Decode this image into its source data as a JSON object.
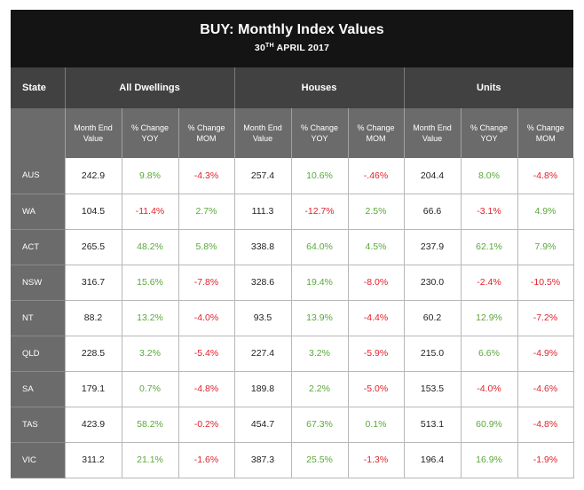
{
  "title": "BUY: Monthly Index Values",
  "subtitle_main": "30",
  "subtitle_sup": "TH",
  "subtitle_rest": " APRIL 2017",
  "state_header": "State",
  "groups": [
    "All Dwellings",
    "Houses",
    "Units"
  ],
  "subheaders": {
    "month_end_1": "Month End",
    "month_end_2": "Value",
    "yoy_1": "% Change",
    "yoy_2": "YOY",
    "mom_1": "% Change",
    "mom_2": "MOM"
  },
  "colors": {
    "positive": "#5aa83a",
    "negative": "#e0232b",
    "header_dark": "#141414",
    "header_mid": "#414141",
    "header_light": "#6b6b6b"
  },
  "rows": [
    {
      "state": "AUS",
      "cells": [
        "242.9",
        "9.8%",
        "-4.3%",
        "257.4",
        "10.6%",
        "-.46%",
        "204.4",
        "8.0%",
        "-4.8%"
      ]
    },
    {
      "state": "WA",
      "cells": [
        "104.5",
        "-11.4%",
        "2.7%",
        "111.3",
        "-12.7%",
        "2.5%",
        "66.6",
        "-3.1%",
        "4.9%"
      ]
    },
    {
      "state": "ACT",
      "cells": [
        "265.5",
        "48.2%",
        "5.8%",
        "338.8",
        "64.0%",
        "4.5%",
        "237.9",
        "62.1%",
        "7.9%"
      ]
    },
    {
      "state": "NSW",
      "cells": [
        "316.7",
        "15.6%",
        "-7.8%",
        "328.6",
        "19.4%",
        "-8.0%",
        "230.0",
        "-2.4%",
        "-10.5%"
      ]
    },
    {
      "state": "NT",
      "cells": [
        "88.2",
        "13.2%",
        "-4.0%",
        "93.5",
        "13.9%",
        "-4.4%",
        "60.2",
        "12.9%",
        "-7.2%"
      ]
    },
    {
      "state": "QLD",
      "cells": [
        "228.5",
        "3.2%",
        "-5.4%",
        "227.4",
        "3.2%",
        "-5.9%",
        "215.0",
        "6.6%",
        "-4.9%"
      ]
    },
    {
      "state": "SA",
      "cells": [
        "179.1",
        "0.7%",
        "-4.8%",
        "189.8",
        "2.2%",
        "-5.0%",
        "153.5",
        "-4.0%",
        "-4.6%"
      ]
    },
    {
      "state": "TAS",
      "cells": [
        "423.9",
        "58.2%",
        "-0.2%",
        "454.7",
        "67.3%",
        "0.1%",
        "513.1",
        "60.9%",
        "-4.8%"
      ]
    },
    {
      "state": "VIC",
      "cells": [
        "311.2",
        "21.1%",
        "-1.6%",
        "387.3",
        "25.5%",
        "-1.3%",
        "196.4",
        "16.9%",
        "-1.9%"
      ]
    }
  ]
}
